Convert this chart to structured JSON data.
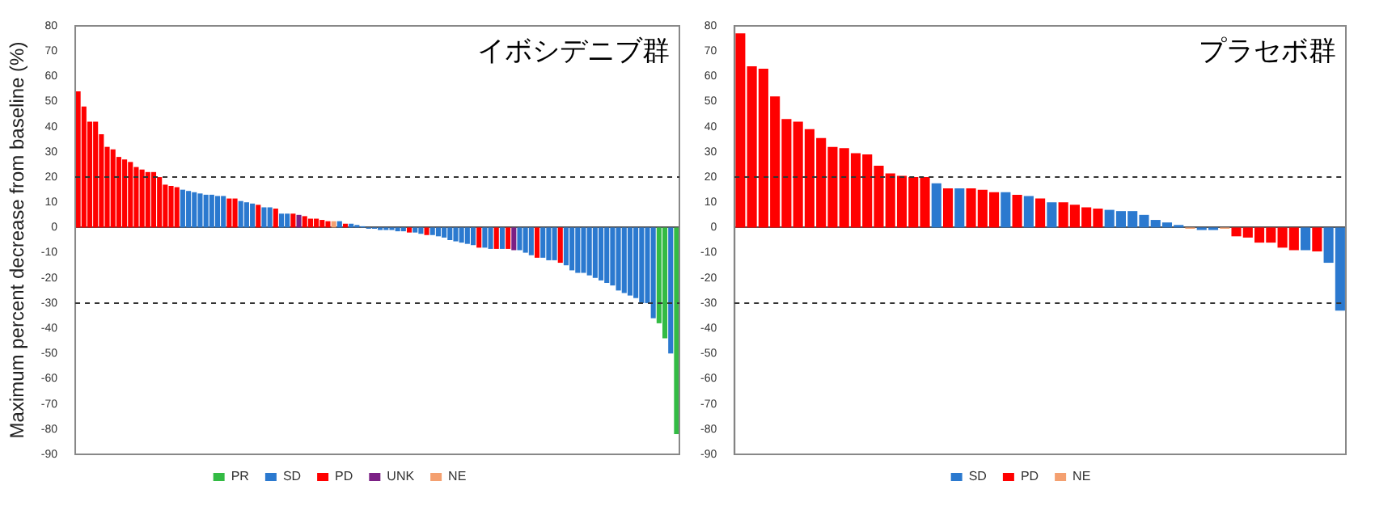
{
  "chart_data": [
    {
      "type": "bar",
      "title": "イボシデニブ群",
      "ylabel": "Maximum percent decrease from baseline (%)",
      "categories": [
        null,
        null,
        null,
        null,
        null,
        null,
        null,
        null,
        null,
        null,
        null,
        null,
        null,
        null,
        null,
        null,
        null,
        null,
        null,
        null,
        null,
        null,
        null,
        null,
        null,
        null,
        null,
        null,
        null,
        null,
        null,
        null,
        null,
        null,
        null,
        null,
        null,
        null,
        null,
        null,
        null,
        null,
        null,
        null,
        null,
        null,
        null,
        null,
        null,
        null,
        null,
        null,
        null,
        null,
        null,
        null,
        null,
        null,
        null,
        null,
        null,
        null,
        null,
        null,
        null,
        null,
        null,
        null,
        null,
        null,
        null,
        null,
        null,
        null,
        null,
        null,
        null,
        null,
        null,
        null,
        null,
        null,
        null,
        null,
        null,
        null,
        null,
        null,
        null,
        null,
        null,
        null,
        null,
        null,
        null,
        null,
        null,
        null,
        null,
        null,
        null,
        null,
        null,
        null
      ],
      "series": [
        {
          "name": "PR",
          "color": "#33bb44",
          "values": [
            null,
            null,
            null,
            null,
            null,
            null,
            null,
            null,
            null,
            null,
            null,
            null,
            null,
            null,
            null,
            null,
            null,
            null,
            null,
            null,
            null,
            null,
            null,
            null,
            null,
            null,
            null,
            null,
            null,
            null,
            null,
            null,
            null,
            null,
            null,
            null,
            null,
            null,
            null,
            null,
            null,
            null,
            null,
            null,
            null,
            null,
            null,
            null,
            null,
            null,
            null,
            null,
            null,
            null,
            null,
            null,
            null,
            null,
            null,
            null,
            null,
            null,
            null,
            null,
            null,
            null,
            null,
            null,
            null,
            null,
            null,
            null,
            null,
            null,
            null,
            null,
            null,
            null,
            null,
            null,
            null,
            null,
            null,
            null,
            null,
            null,
            null,
            null,
            null,
            null,
            null,
            null,
            null,
            null,
            null,
            null,
            null,
            null,
            null,
            null,
            -38,
            -44,
            null,
            -82
          ]
        },
        {
          "name": "SD",
          "color": "#2b79cf",
          "values": [
            null,
            null,
            null,
            null,
            null,
            null,
            null,
            null,
            null,
            null,
            null,
            null,
            null,
            null,
            null,
            null,
            null,
            null,
            15,
            14.5,
            14,
            13.5,
            13,
            13,
            12.5,
            12.5,
            null,
            null,
            10.5,
            10,
            9.5,
            null,
            8,
            8,
            null,
            5.5,
            5.5,
            null,
            null,
            null,
            null,
            null,
            null,
            null,
            null,
            2.5,
            null,
            1.5,
            1,
            0.5,
            -0.5,
            -0.5,
            -1,
            -1,
            -1,
            -1.5,
            -1.5,
            null,
            -2,
            -2.5,
            null,
            -3,
            -3.5,
            -4,
            -5,
            -5.5,
            -6,
            -6.5,
            -7,
            null,
            -8,
            -8.5,
            null,
            -8.5,
            null,
            null,
            -9,
            -10,
            -11,
            null,
            -12,
            -13,
            -13,
            null,
            -15,
            -17,
            -18,
            -18,
            -19,
            -20,
            -21,
            -22,
            -23,
            -25,
            -26,
            -27,
            -28,
            -30,
            -30,
            -36,
            null,
            null,
            -50,
            null
          ]
        },
        {
          "name": "PD",
          "color": "#ff0000",
          "values": [
            54,
            48,
            42,
            42,
            37,
            32,
            31,
            28,
            27,
            26,
            24,
            23,
            22,
            22,
            20,
            17,
            16.5,
            16,
            null,
            null,
            null,
            null,
            null,
            null,
            null,
            null,
            11.5,
            11.5,
            null,
            null,
            null,
            9,
            null,
            null,
            7.5,
            null,
            null,
            5.5,
            null,
            4.5,
            3.5,
            3.5,
            3,
            2.5,
            null,
            null,
            1.5,
            null,
            null,
            null,
            null,
            null,
            null,
            null,
            null,
            null,
            null,
            -2,
            null,
            null,
            -3,
            null,
            null,
            null,
            null,
            null,
            null,
            null,
            null,
            -8,
            null,
            null,
            -8.5,
            null,
            -8.5,
            null,
            null,
            null,
            null,
            -12,
            null,
            null,
            null,
            -14,
            null,
            null,
            null,
            null,
            null,
            null,
            null,
            null,
            null,
            null,
            null,
            null,
            null,
            null,
            null,
            null,
            null,
            null,
            null,
            null
          ]
        },
        {
          "name": "UNK",
          "color": "#7b2085",
          "values": [
            null,
            null,
            null,
            null,
            null,
            null,
            null,
            null,
            null,
            null,
            null,
            null,
            null,
            null,
            null,
            null,
            null,
            null,
            null,
            null,
            null,
            null,
            null,
            null,
            null,
            null,
            null,
            null,
            null,
            null,
            null,
            null,
            null,
            null,
            null,
            null,
            null,
            null,
            5,
            null,
            null,
            null,
            null,
            null,
            null,
            null,
            null,
            null,
            null,
            null,
            null,
            null,
            null,
            null,
            null,
            null,
            null,
            null,
            null,
            null,
            null,
            null,
            null,
            null,
            null,
            null,
            null,
            null,
            null,
            null,
            null,
            null,
            null,
            null,
            null,
            -9,
            null,
            null,
            null,
            null,
            null,
            null,
            null,
            null,
            null,
            null,
            null,
            null,
            null,
            null,
            null,
            null,
            null,
            null,
            null,
            null,
            null,
            null,
            null,
            null,
            null,
            null,
            null,
            null
          ]
        },
        {
          "name": "NE",
          "color": "#f4a070",
          "values": [
            null,
            null,
            null,
            null,
            null,
            null,
            null,
            null,
            null,
            null,
            null,
            null,
            null,
            null,
            null,
            null,
            null,
            null,
            null,
            null,
            null,
            null,
            null,
            null,
            null,
            null,
            null,
            null,
            null,
            null,
            null,
            null,
            null,
            null,
            null,
            null,
            null,
            null,
            null,
            null,
            null,
            null,
            null,
            null,
            2.5,
            null,
            null,
            null,
            null,
            null,
            null,
            null,
            null,
            null,
            null,
            null,
            null,
            null,
            null,
            null,
            null,
            null,
            null,
            null,
            null,
            null,
            null,
            null,
            null,
            null,
            null,
            null,
            null,
            null,
            null,
            null,
            null,
            null,
            null,
            null,
            null,
            null,
            null,
            null,
            null,
            null,
            null,
            null,
            null,
            null,
            null,
            null,
            null,
            null,
            null,
            null,
            null,
            null,
            null,
            null,
            null,
            null,
            null,
            null
          ]
        }
      ],
      "ylim": [
        -90,
        80
      ],
      "yticks": [
        -90,
        -80,
        -70,
        -60,
        -50,
        -40,
        -30,
        -20,
        -10,
        0,
        10,
        20,
        30,
        40,
        50,
        60,
        70,
        80
      ],
      "ref_lines": [
        {
          "axis": "y",
          "value": 20,
          "line_style": "dashed"
        },
        {
          "axis": "y",
          "value": -30,
          "line_style": "dashed"
        }
      ],
      "grid": false,
      "legend": "bottom"
    },
    {
      "type": "bar",
      "title": "プラセボ群",
      "categories": [
        null,
        null,
        null,
        null,
        null,
        null,
        null,
        null,
        null,
        null,
        null,
        null,
        null,
        null,
        null,
        null,
        null,
        null,
        null,
        null,
        null,
        null,
        null,
        null,
        null,
        null,
        null,
        null,
        null,
        null,
        null,
        null,
        null,
        null,
        null,
        null,
        null,
        null,
        null,
        null,
        null,
        null,
        null,
        null,
        null,
        null,
        null,
        null,
        null,
        null,
        null,
        null,
        null
      ],
      "series": [
        {
          "name": "SD",
          "color": "#2b79cf",
          "values": [
            null,
            null,
            null,
            null,
            null,
            null,
            null,
            null,
            null,
            null,
            null,
            null,
            null,
            null,
            null,
            null,
            null,
            17.5,
            null,
            15.5,
            null,
            null,
            null,
            14,
            null,
            12.5,
            null,
            10,
            null,
            null,
            null,
            null,
            7,
            6.5,
            6.5,
            5,
            3,
            2,
            1,
            null,
            -1,
            -1,
            null,
            null,
            null,
            null,
            null,
            null,
            null,
            -9,
            null,
            -14,
            -33
          ]
        },
        {
          "name": "PD",
          "color": "#ff0000",
          "values": [
            77,
            64,
            63,
            52,
            43,
            42,
            39,
            35.5,
            32,
            31.5,
            29.5,
            29,
            24.5,
            21.5,
            20.5,
            20,
            20,
            null,
            15.5,
            null,
            15.5,
            15,
            14,
            null,
            13,
            null,
            11.5,
            null,
            10,
            9,
            8,
            7.5,
            null,
            null,
            null,
            null,
            null,
            null,
            null,
            null,
            null,
            null,
            null,
            -3.5,
            -4,
            -6,
            -6,
            -8,
            -9,
            null,
            -9.5,
            null,
            null
          ]
        },
        {
          "name": "NE",
          "color": "#f4a070",
          "values": [
            null,
            null,
            null,
            null,
            null,
            null,
            null,
            null,
            null,
            null,
            null,
            null,
            null,
            null,
            null,
            null,
            null,
            null,
            null,
            null,
            null,
            null,
            null,
            null,
            null,
            null,
            null,
            null,
            null,
            null,
            null,
            null,
            null,
            null,
            null,
            null,
            null,
            null,
            null,
            -0.5,
            null,
            null,
            -0.5,
            null,
            null,
            null,
            null,
            null,
            null,
            null,
            null,
            null,
            null
          ]
        }
      ],
      "ylim": [
        -90,
        80
      ],
      "yticks": [
        -90,
        -80,
        -70,
        -60,
        -50,
        -40,
        -30,
        -20,
        -10,
        0,
        10,
        20,
        30,
        40,
        50,
        60,
        70,
        80
      ],
      "ref_lines": [
        {
          "axis": "y",
          "value": 20,
          "line_style": "dashed"
        },
        {
          "axis": "y",
          "value": -30,
          "line_style": "dashed"
        }
      ],
      "grid": false,
      "legend": "bottom"
    }
  ]
}
